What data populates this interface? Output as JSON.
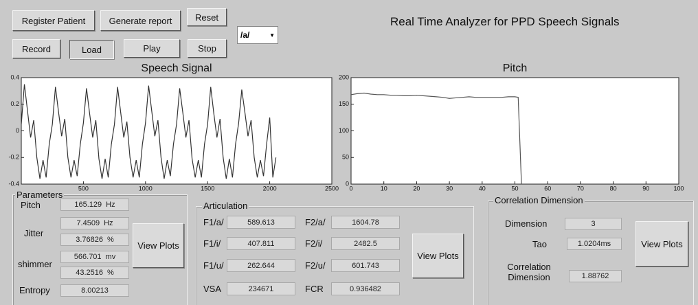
{
  "header": {
    "title": "Real Time Analyzer for PPD Speech Signals"
  },
  "buttons": [
    "Register Patient",
    "Generate report",
    "Reset",
    "Record",
    "Load",
    "Play",
    "Stop"
  ],
  "dropdown": "/a/",
  "chart_data": [
    {
      "type": "line",
      "title": "Speech Signal",
      "color": "#333333",
      "x": [
        0,
        25,
        50,
        75,
        100,
        125,
        150,
        175,
        200,
        225,
        250,
        275,
        300,
        325,
        350,
        375,
        400,
        425,
        450,
        475,
        500,
        525,
        550,
        575,
        600,
        625,
        650,
        675,
        700,
        725,
        750,
        775,
        800,
        825,
        850,
        875,
        900,
        925,
        950,
        975,
        1000,
        1025,
        1050,
        1075,
        1100,
        1125,
        1150,
        1175,
        1200,
        1225,
        1250,
        1275,
        1300,
        1325,
        1350,
        1375,
        1400,
        1425,
        1450,
        1475,
        1500,
        1525,
        1550,
        1575,
        1600,
        1625,
        1650,
        1675,
        1700,
        1725,
        1750,
        1775,
        1800,
        1825,
        1850,
        1875,
        1900,
        1925,
        1950,
        1975,
        2000,
        2025,
        2050
      ],
      "values": [
        0.05,
        0.35,
        0.15,
        -0.05,
        0.08,
        -0.2,
        -0.36,
        -0.22,
        -0.35,
        -0.1,
        0.05,
        0.33,
        0.14,
        -0.04,
        0.09,
        -0.2,
        -0.35,
        -0.22,
        -0.34,
        -0.1,
        0.06,
        0.32,
        0.13,
        -0.05,
        0.08,
        -0.21,
        -0.36,
        -0.21,
        -0.35,
        -0.1,
        0.05,
        0.33,
        0.14,
        -0.05,
        0.07,
        -0.2,
        -0.35,
        -0.22,
        -0.35,
        -0.1,
        0.06,
        0.34,
        0.15,
        -0.04,
        0.08,
        -0.2,
        -0.36,
        -0.22,
        -0.34,
        -0.1,
        0.05,
        0.32,
        0.14,
        -0.05,
        0.08,
        -0.21,
        -0.35,
        -0.22,
        -0.35,
        -0.1,
        0.05,
        0.33,
        0.13,
        -0.05,
        0.09,
        -0.2,
        -0.36,
        -0.21,
        -0.35,
        -0.1,
        0.06,
        0.31,
        0.14,
        -0.04,
        0.08,
        -0.2,
        -0.35,
        -0.22,
        -0.34,
        -0.1,
        0.1,
        -0.35,
        -0.2
      ],
      "xlim": [
        0,
        2500
      ],
      "ylim": [
        -0.4,
        0.4
      ],
      "xticks": [
        500,
        1000,
        1500,
        2000,
        2500
      ],
      "yticks": [
        -0.4,
        -0.2,
        0,
        0.2,
        0.4
      ]
    },
    {
      "type": "line",
      "title": "Pitch",
      "color": "#555555",
      "x": [
        0,
        2,
        4,
        6,
        8,
        10,
        12,
        14,
        16,
        18,
        20,
        22,
        24,
        26,
        28,
        30,
        32,
        34,
        36,
        38,
        40,
        42,
        44,
        46,
        48,
        50,
        51,
        52
      ],
      "values": [
        168,
        170,
        171,
        169,
        168,
        168,
        167,
        167,
        166,
        166,
        167,
        166,
        165,
        164,
        163,
        161,
        162,
        163,
        164,
        163,
        163,
        163,
        163,
        163,
        164,
        164,
        163,
        0
      ],
      "xlim": [
        0,
        100
      ],
      "ylim": [
        0,
        200
      ],
      "xticks": [
        0,
        10,
        20,
        30,
        40,
        50,
        60,
        70,
        80,
        90,
        100
      ],
      "yticks": [
        0,
        50,
        100,
        150,
        200
      ]
    }
  ],
  "parameters": {
    "title": "Parameters",
    "button": "View Plots",
    "rows": [
      {
        "label": "Pitch",
        "fields": [
          {
            "value": "165.129",
            "unit": "Hz"
          }
        ]
      },
      {
        "label": "Jitter",
        "fields": [
          {
            "value": "7.4509",
            "unit": "Hz"
          },
          {
            "value": "3.76826",
            "unit": "%"
          }
        ]
      },
      {
        "label": "shimmer",
        "fields": [
          {
            "value": "566.701",
            "unit": "mv"
          },
          {
            "value": "43.2516",
            "unit": "%"
          }
        ]
      },
      {
        "label": "Entropy",
        "fields": [
          {
            "value": "8.00213"
          }
        ]
      }
    ]
  },
  "articulation": {
    "title": "Articulation",
    "button": "View Plots",
    "items": [
      {
        "label": "F1/a/",
        "value": "589.613"
      },
      {
        "label": "F2/a/",
        "value": "1604.78"
      },
      {
        "label": "F1/i/",
        "value": "407.811"
      },
      {
        "label": "F2/i/",
        "value": "2482.5"
      },
      {
        "label": "F1/u/",
        "value": "262.644"
      },
      {
        "label": "F2/u/",
        "value": "601.743"
      },
      {
        "label": "VSA",
        "value": "234671"
      },
      {
        "label": "FCR",
        "value": "0.936482"
      }
    ]
  },
  "correlation": {
    "title": "Correlation Dimension",
    "button": "View Plots",
    "items": [
      {
        "label": "Dimension",
        "value": "3"
      },
      {
        "label": "Tao",
        "value": "1.0204ms"
      },
      {
        "label": "Correlation Dimension",
        "value": "1.88762"
      }
    ]
  }
}
